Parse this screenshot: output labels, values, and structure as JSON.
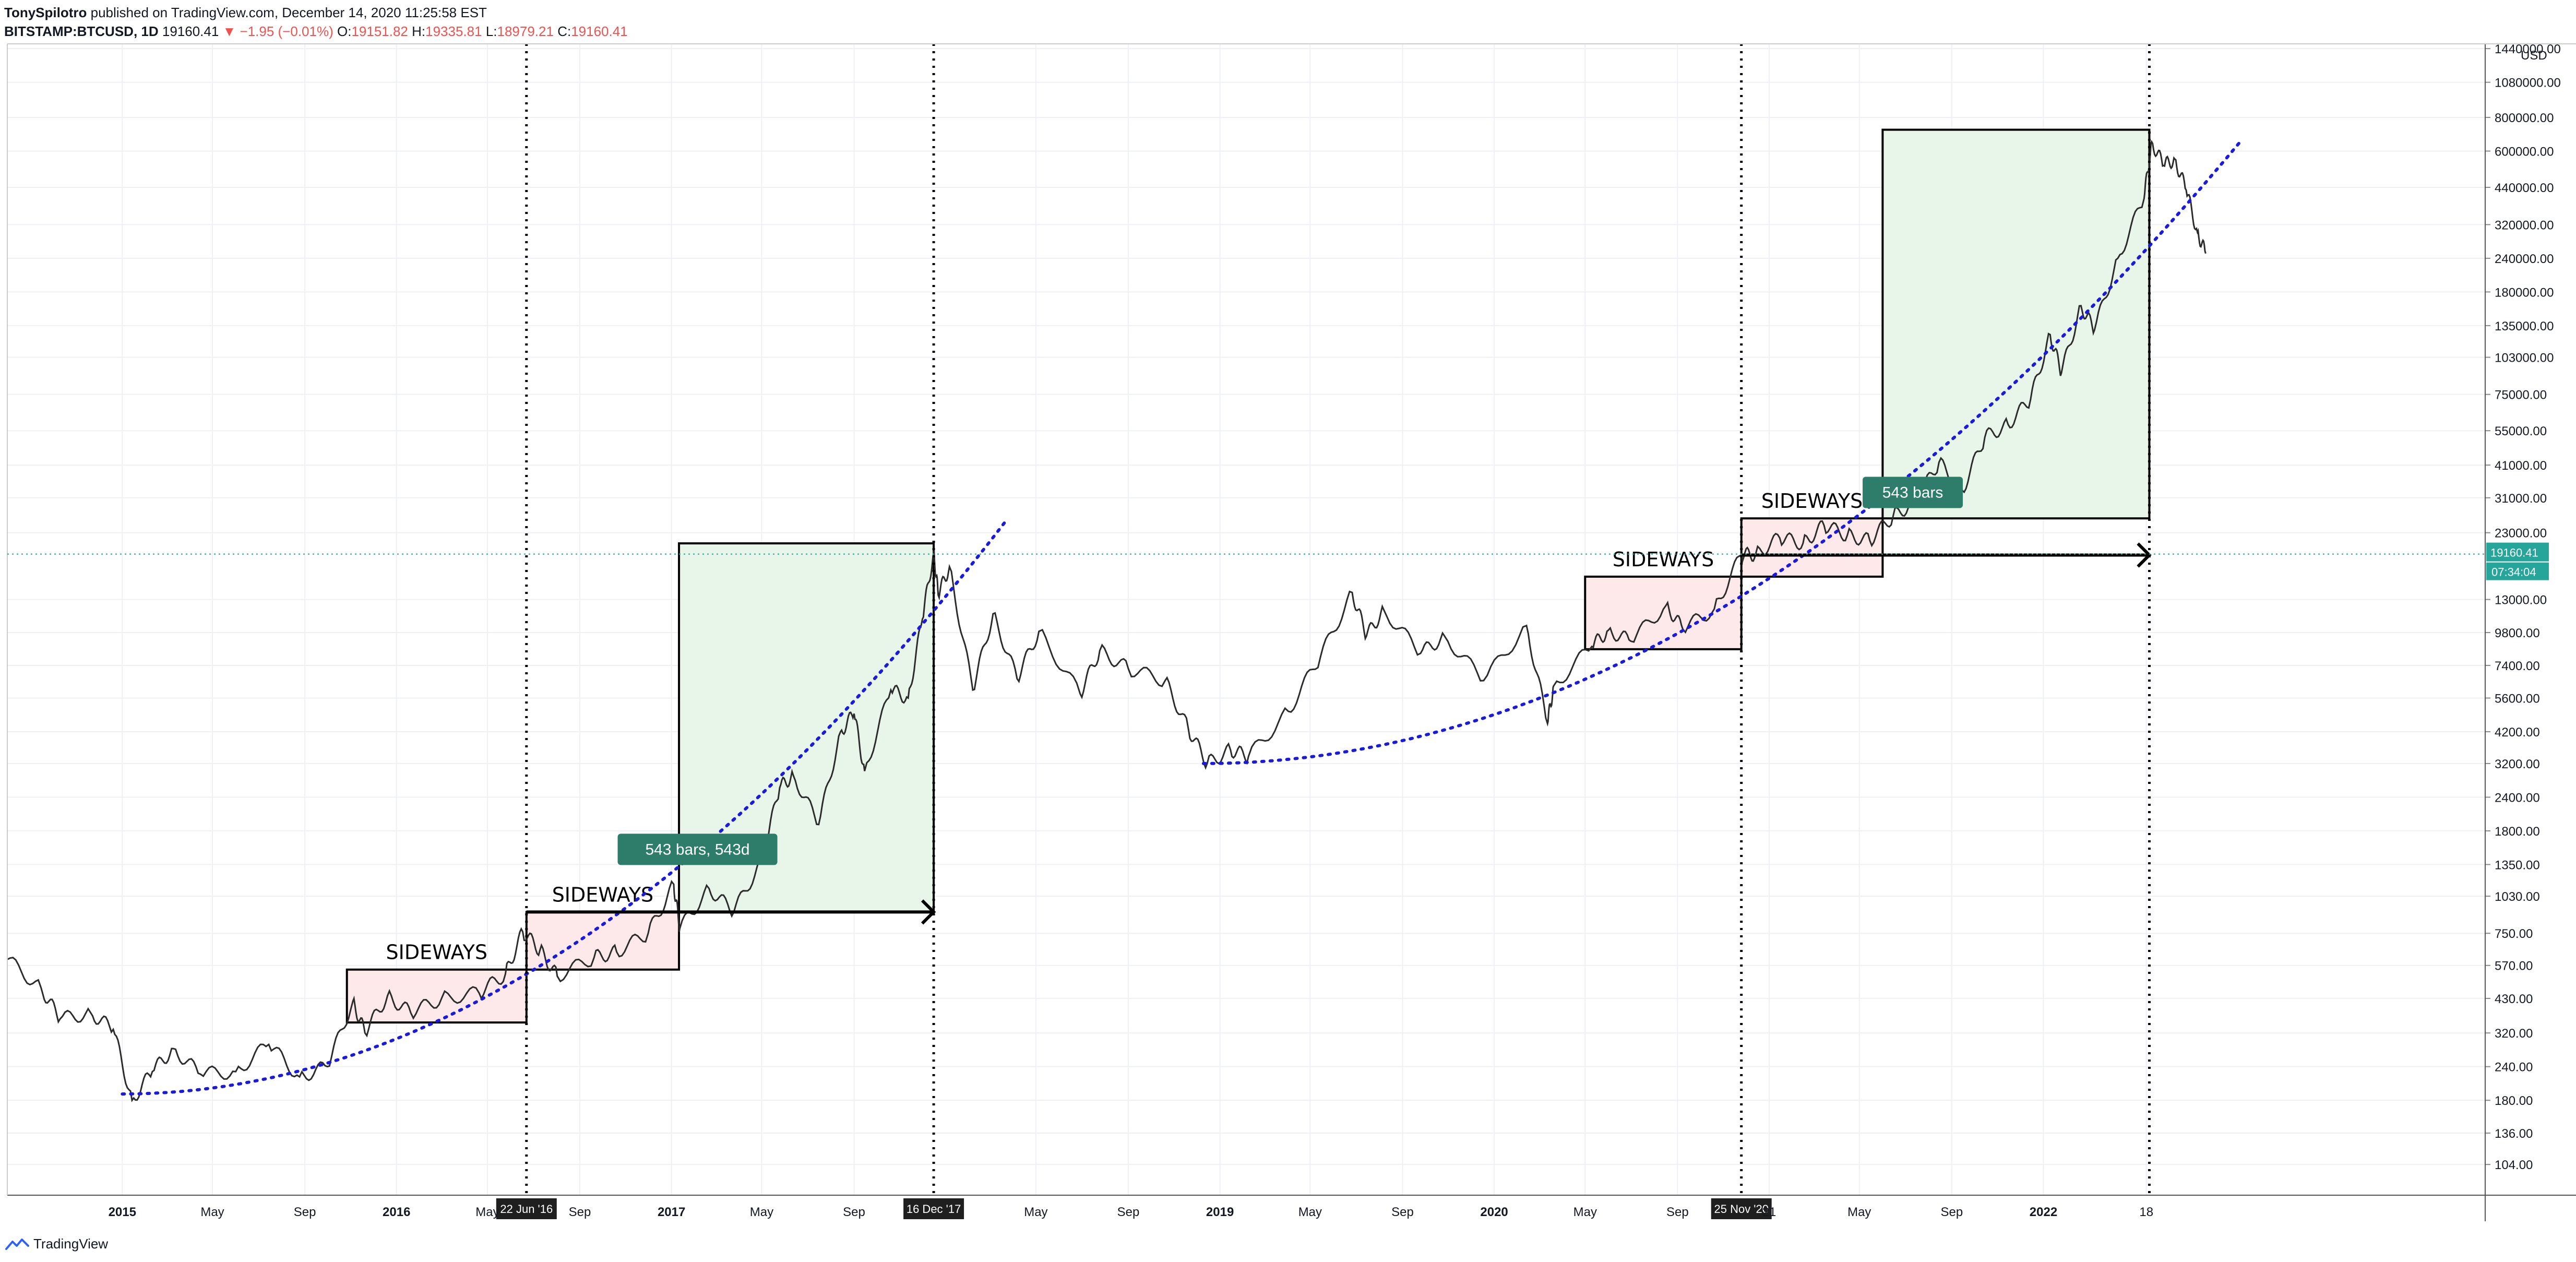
{
  "header": {
    "line1_author": "TonySpilotro",
    "line1_rest": "published on TradingView.com, December 14, 2020 11:25:58 EST",
    "symbol": "BITSTAMP:BTCUSD, 1D",
    "price": "19160.41",
    "change": "▼ −1.95 (−0.01%)",
    "o_label": "O:",
    "o_value": "19151.82",
    "h_label": "H:",
    "h_value": "19335.81",
    "l_label": "L:",
    "l_value": "18979.21",
    "c_label": "C:",
    "c_value": "19160.41"
  },
  "footer": {
    "brand": "TradingView"
  },
  "colors": {
    "up": "#26a69a",
    "down": "#ef5350",
    "curve": "#1a1adb",
    "green_zone": "#e8f5e9",
    "pink_zone": "#fde9ea",
    "label_bg": "#2e7d6b",
    "grid": "#eef0f5"
  },
  "chart_data": {
    "type": "line",
    "symbol": "BITSTAMP:BTCUSD",
    "interval": "1D",
    "y_scale": "log",
    "y_unit": "USD",
    "ylim": [
      80,
      1500000
    ],
    "x_range": [
      "2014-08-01",
      "2023-08-12"
    ],
    "y_ticks": [
      "1440000.00",
      "1080000.00",
      "800000.00",
      "600000.00",
      "440000.00",
      "320000.00",
      "240000.00",
      "180000.00",
      "135000.00",
      "103000.00",
      "75000.00",
      "55000.00",
      "41000.00",
      "31000.00",
      "23000.00",
      "13000.00",
      "9800.00",
      "7400.00",
      "5600.00",
      "4200.00",
      "3200.00",
      "2400.00",
      "1800.00",
      "1350.00",
      "1030.00",
      "750.00",
      "570.00",
      "430.00",
      "320.00",
      "240.00",
      "180.00",
      "136.00",
      "104.00"
    ],
    "x_ticks": [
      {
        "label": "2015",
        "date": "2015-01-01"
      },
      {
        "label": "May",
        "date": "2015-05-01"
      },
      {
        "label": "Sep",
        "date": "2015-09-01"
      },
      {
        "label": "2016",
        "date": "2016-01-01"
      },
      {
        "label": "May",
        "date": "2016-05-01"
      },
      {
        "label": "Sep",
        "date": "2016-09-01"
      },
      {
        "label": "2017",
        "date": "2017-01-01"
      },
      {
        "label": "May",
        "date": "2017-05-01"
      },
      {
        "label": "Sep",
        "date": "2017-09-01"
      },
      {
        "label": "May",
        "date": "2018-05-01"
      },
      {
        "label": "Sep",
        "date": "2018-09-01"
      },
      {
        "label": "2019",
        "date": "2019-01-01"
      },
      {
        "label": "May",
        "date": "2019-05-01"
      },
      {
        "label": "Sep",
        "date": "2019-09-01"
      },
      {
        "label": "2020",
        "date": "2020-01-01"
      },
      {
        "label": "May",
        "date": "2020-05-01"
      },
      {
        "label": "Sep",
        "date": "2020-09-01"
      },
      {
        "label": "21",
        "date": "2021-01-01"
      },
      {
        "label": "May",
        "date": "2021-05-01"
      },
      {
        "label": "Sep",
        "date": "2021-09-01"
      },
      {
        "label": "2022",
        "date": "2022-01-01"
      },
      {
        "label": "18",
        "date": "2022-05-18"
      }
    ],
    "marked_dates": [
      {
        "label": "22 Jun '16",
        "date": "2016-06-22"
      },
      {
        "label": "16 Dec '17",
        "date": "2017-12-16"
      },
      {
        "label": "25 Nov '20",
        "date": "2020-11-25"
      },
      {
        "label": "",
        "date": "2022-05-22"
      }
    ],
    "price_path": [
      [
        "2014-08-01",
        600
      ],
      [
        "2014-09-15",
        470
      ],
      [
        "2014-10-10",
        360
      ],
      [
        "2014-11-20",
        380
      ],
      [
        "2014-12-20",
        330
      ],
      [
        "2015-01-14",
        180
      ],
      [
        "2015-02-10",
        230
      ],
      [
        "2015-03-10",
        280
      ],
      [
        "2015-04-15",
        225
      ],
      [
        "2015-06-01",
        230
      ],
      [
        "2015-07-15",
        290
      ],
      [
        "2015-08-25",
        220
      ],
      [
        "2015-10-01",
        240
      ],
      [
        "2015-11-04",
        420
      ],
      [
        "2015-11-20",
        320
      ],
      [
        "2015-12-20",
        440
      ],
      [
        "2016-01-20",
        380
      ],
      [
        "2016-03-01",
        430
      ],
      [
        "2016-04-20",
        450
      ],
      [
        "2016-05-25",
        530
      ],
      [
        "2016-06-17",
        760
      ],
      [
        "2016-07-10",
        650
      ],
      [
        "2016-08-02",
        520
      ],
      [
        "2016-09-20",
        610
      ],
      [
        "2016-10-20",
        640
      ],
      [
        "2016-12-01",
        750
      ],
      [
        "2017-01-04",
        1140
      ],
      [
        "2017-01-12",
        780
      ],
      [
        "2017-02-20",
        1100
      ],
      [
        "2017-03-25",
        900
      ],
      [
        "2017-05-01",
        1400
      ],
      [
        "2017-05-25",
        2600
      ],
      [
        "2017-06-12",
        2900
      ],
      [
        "2017-07-16",
        1900
      ],
      [
        "2017-08-14",
        4200
      ],
      [
        "2017-09-01",
        4900
      ],
      [
        "2017-09-15",
        3000
      ],
      [
        "2017-10-20",
        6000
      ],
      [
        "2017-11-12",
        5600
      ],
      [
        "2017-12-01",
        11000
      ],
      [
        "2017-12-16",
        19500
      ],
      [
        "2017-12-22",
        13500
      ],
      [
        "2018-01-06",
        17200
      ],
      [
        "2018-02-06",
        6000
      ],
      [
        "2018-03-05",
        11500
      ],
      [
        "2018-04-06",
        6600
      ],
      [
        "2018-05-05",
        9900
      ],
      [
        "2018-06-29",
        5800
      ],
      [
        "2018-07-25",
        8400
      ],
      [
        "2018-09-01",
        7200
      ],
      [
        "2018-10-20",
        6500
      ],
      [
        "2018-11-20",
        4300
      ],
      [
        "2018-12-15",
        3200
      ],
      [
        "2019-01-15",
        3600
      ],
      [
        "2019-02-08",
        3400
      ],
      [
        "2019-04-02",
        5000
      ],
      [
        "2019-05-15",
        8000
      ],
      [
        "2019-06-26",
        13800
      ],
      [
        "2019-07-15",
        9500
      ],
      [
        "2019-08-07",
        11900
      ],
      [
        "2019-09-25",
        8200
      ],
      [
        "2019-10-27",
        9500
      ],
      [
        "2019-12-18",
        6500
      ],
      [
        "2020-02-13",
        10400
      ],
      [
        "2020-03-12",
        4500
      ],
      [
        "2020-03-20",
        6200
      ],
      [
        "2020-05-10",
        8700
      ],
      [
        "2020-06-01",
        10000
      ],
      [
        "2020-07-01",
        9100
      ],
      [
        "2020-08-17",
        12400
      ],
      [
        "2020-09-08",
        10100
      ],
      [
        "2020-10-20",
        12000
      ],
      [
        "2020-11-25",
        19000
      ],
      [
        "2020-12-14",
        19160
      ],
      [
        "2021-01-15",
        22000
      ],
      [
        "2021-02-15",
        21000
      ],
      [
        "2021-03-15",
        24500
      ],
      [
        "2021-04-15",
        22500
      ],
      [
        "2021-05-15",
        21500
      ],
      [
        "2021-06-15",
        26500
      ],
      [
        "2021-07-15",
        30000
      ],
      [
        "2021-08-15",
        42000
      ],
      [
        "2021-09-15",
        33000
      ],
      [
        "2021-10-15",
        52000
      ],
      [
        "2021-11-15",
        58000
      ],
      [
        "2021-12-15",
        72000
      ],
      [
        "2022-01-10",
        125000
      ],
      [
        "2022-01-25",
        90000
      ],
      [
        "2022-02-20",
        160000
      ],
      [
        "2022-03-10",
        130000
      ],
      [
        "2022-04-10",
        240000
      ],
      [
        "2022-05-15",
        400000
      ],
      [
        "2022-05-25",
        650000
      ],
      [
        "2022-06-10",
        530000
      ],
      [
        "2022-06-25",
        560000
      ],
      [
        "2022-07-10",
        430000
      ],
      [
        "2022-07-25",
        300000
      ],
      [
        "2022-08-05",
        250000
      ]
    ],
    "curves": [
      {
        "from": [
          "2015-01-01",
          190
        ],
        "to": [
          "2018-03-20",
          25000
        ]
      },
      {
        "from": [
          "2018-12-10",
          3200
        ],
        "to": [
          "2022-09-20",
          650000
        ]
      }
    ],
    "zones": [
      {
        "kind": "sideways",
        "from": "2015-10-27",
        "to": "2016-06-22",
        "low": 350,
        "high": 550,
        "label": "SIDEWAYS"
      },
      {
        "kind": "sideways",
        "from": "2016-06-22",
        "to": "2017-01-11",
        "low": 550,
        "high": 900,
        "label": "SIDEWAYS"
      },
      {
        "kind": "growth",
        "from": "2017-01-11",
        "to": "2017-12-16",
        "low": 900,
        "high": 21000,
        "label": ""
      },
      {
        "kind": "sideways",
        "from": "2020-05-01",
        "to": "2020-11-25",
        "low": 8500,
        "high": 15800,
        "label": "SIDEWAYS"
      },
      {
        "kind": "sideways",
        "from": "2020-11-25",
        "to": "2021-06-01",
        "low": 15800,
        "high": 26000,
        "label": "SIDEWAYS"
      },
      {
        "kind": "growth",
        "from": "2021-06-01",
        "to": "2022-05-22",
        "low": 26000,
        "high": 720000,
        "label": ""
      }
    ],
    "measures": [
      {
        "from": "2016-06-22",
        "to": "2017-12-16",
        "price": 900,
        "label": "543 bars, 543d"
      },
      {
        "from": "2020-11-25",
        "to": "2022-05-22",
        "price": 19000,
        "label": "543 bars"
      }
    ],
    "last_price": {
      "value": "19160.41",
      "countdown": "07:34:04"
    }
  }
}
